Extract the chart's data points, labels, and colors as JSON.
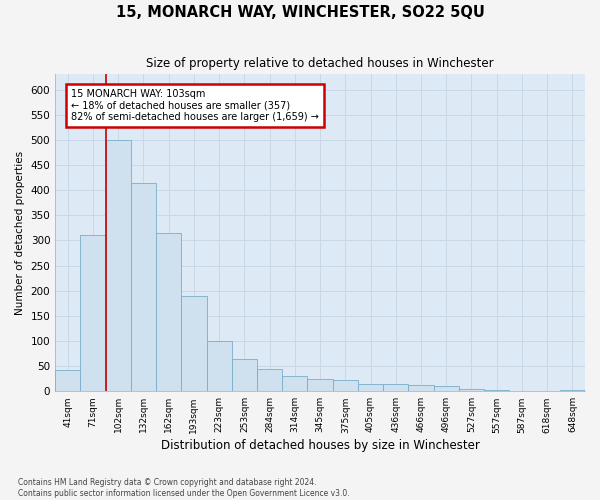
{
  "title": "15, MONARCH WAY, WINCHESTER, SO22 5QU",
  "subtitle": "Size of property relative to detached houses in Winchester",
  "xlabel": "Distribution of detached houses by size in Winchester",
  "ylabel": "Number of detached properties",
  "categories": [
    "41sqm",
    "71sqm",
    "102sqm",
    "132sqm",
    "162sqm",
    "193sqm",
    "223sqm",
    "253sqm",
    "284sqm",
    "314sqm",
    "345sqm",
    "375sqm",
    "405sqm",
    "436sqm",
    "466sqm",
    "496sqm",
    "527sqm",
    "557sqm",
    "587sqm",
    "618sqm",
    "648sqm"
  ],
  "values": [
    42,
    310,
    500,
    415,
    315,
    190,
    100,
    65,
    45,
    30,
    25,
    22,
    15,
    15,
    13,
    10,
    5,
    3,
    1,
    1,
    2
  ],
  "bar_color": "#cfe0ee",
  "bar_edge_color": "#7aaec8",
  "background_color": "#ddeaf5",
  "grid_color": "#c8d8e8",
  "fig_background": "#f4f4f4",
  "red_line_index": 2,
  "annotation_text": "15 MONARCH WAY: 103sqm\n← 18% of detached houses are smaller (357)\n82% of semi-detached houses are larger (1,659) →",
  "annotation_box_color": "#ffffff",
  "annotation_box_edgecolor": "#cc0000",
  "ylim": [
    0,
    630
  ],
  "yticks": [
    0,
    50,
    100,
    150,
    200,
    250,
    300,
    350,
    400,
    450,
    500,
    550,
    600
  ],
  "footer_line1": "Contains HM Land Registry data © Crown copyright and database right 2024.",
  "footer_line2": "Contains public sector information licensed under the Open Government Licence v3.0."
}
